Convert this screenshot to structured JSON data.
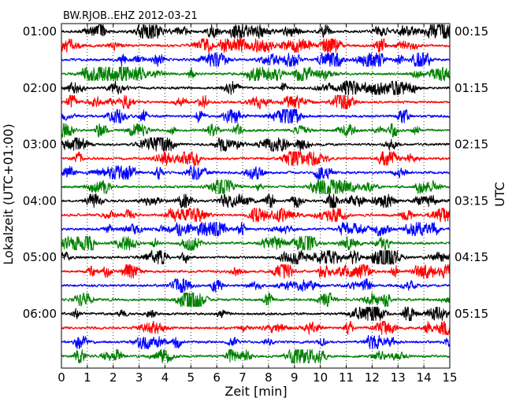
{
  "chart_data": {
    "type": "line",
    "title": "BW.RJOB..EHZ 2012-03-21",
    "xlabel": "Zeit  [min]",
    "ylabel_left": "Lokalzeit (UTC+01:00)",
    "ylabel_right": "UTC",
    "xlim": [
      0,
      15
    ],
    "x_ticks": [
      0,
      1,
      2,
      3,
      4,
      5,
      6,
      7,
      8,
      9,
      10,
      11,
      12,
      13,
      14,
      15
    ],
    "grid": "vertical dotted lines at each minute",
    "left_ticks": [
      {
        "row": 0,
        "label": "01:00"
      },
      {
        "row": 4,
        "label": "02:00"
      },
      {
        "row": 8,
        "label": "03:00"
      },
      {
        "row": 12,
        "label": "04:00"
      },
      {
        "row": 16,
        "label": "05:00"
      },
      {
        "row": 20,
        "label": "06:00"
      }
    ],
    "right_ticks": [
      {
        "row": 0,
        "label": "00:15"
      },
      {
        "row": 4,
        "label": "01:15"
      },
      {
        "row": 8,
        "label": "02:15"
      },
      {
        "row": 12,
        "label": "03:15"
      },
      {
        "row": 16,
        "label": "04:15"
      },
      {
        "row": 20,
        "label": "05:15"
      }
    ],
    "row_count": 24,
    "row_minutes": 15,
    "color_cycle": [
      "#000000",
      "#ff0000",
      "#0000ff",
      "#008000"
    ],
    "series": [
      {
        "start": "01:00",
        "color": "#000000"
      },
      {
        "start": "01:15",
        "color": "#ff0000"
      },
      {
        "start": "01:30",
        "color": "#0000ff"
      },
      {
        "start": "01:45",
        "color": "#008000"
      },
      {
        "start": "02:00",
        "color": "#000000"
      },
      {
        "start": "02:15",
        "color": "#ff0000"
      },
      {
        "start": "02:30",
        "color": "#0000ff"
      },
      {
        "start": "02:45",
        "color": "#008000"
      },
      {
        "start": "03:00",
        "color": "#000000"
      },
      {
        "start": "03:15",
        "color": "#ff0000"
      },
      {
        "start": "03:30",
        "color": "#0000ff"
      },
      {
        "start": "03:45",
        "color": "#008000"
      },
      {
        "start": "04:00",
        "color": "#000000"
      },
      {
        "start": "04:15",
        "color": "#ff0000"
      },
      {
        "start": "04:30",
        "color": "#0000ff"
      },
      {
        "start": "04:45",
        "color": "#008000"
      },
      {
        "start": "05:00",
        "color": "#000000"
      },
      {
        "start": "05:15",
        "color": "#ff0000"
      },
      {
        "start": "05:30",
        "color": "#0000ff"
      },
      {
        "start": "05:45",
        "color": "#008000"
      },
      {
        "start": "06:00",
        "color": "#000000"
      },
      {
        "start": "06:15",
        "color": "#ff0000"
      },
      {
        "start": "06:30",
        "color": "#0000ff"
      },
      {
        "start": "06:45",
        "color": "#008000"
      }
    ]
  }
}
